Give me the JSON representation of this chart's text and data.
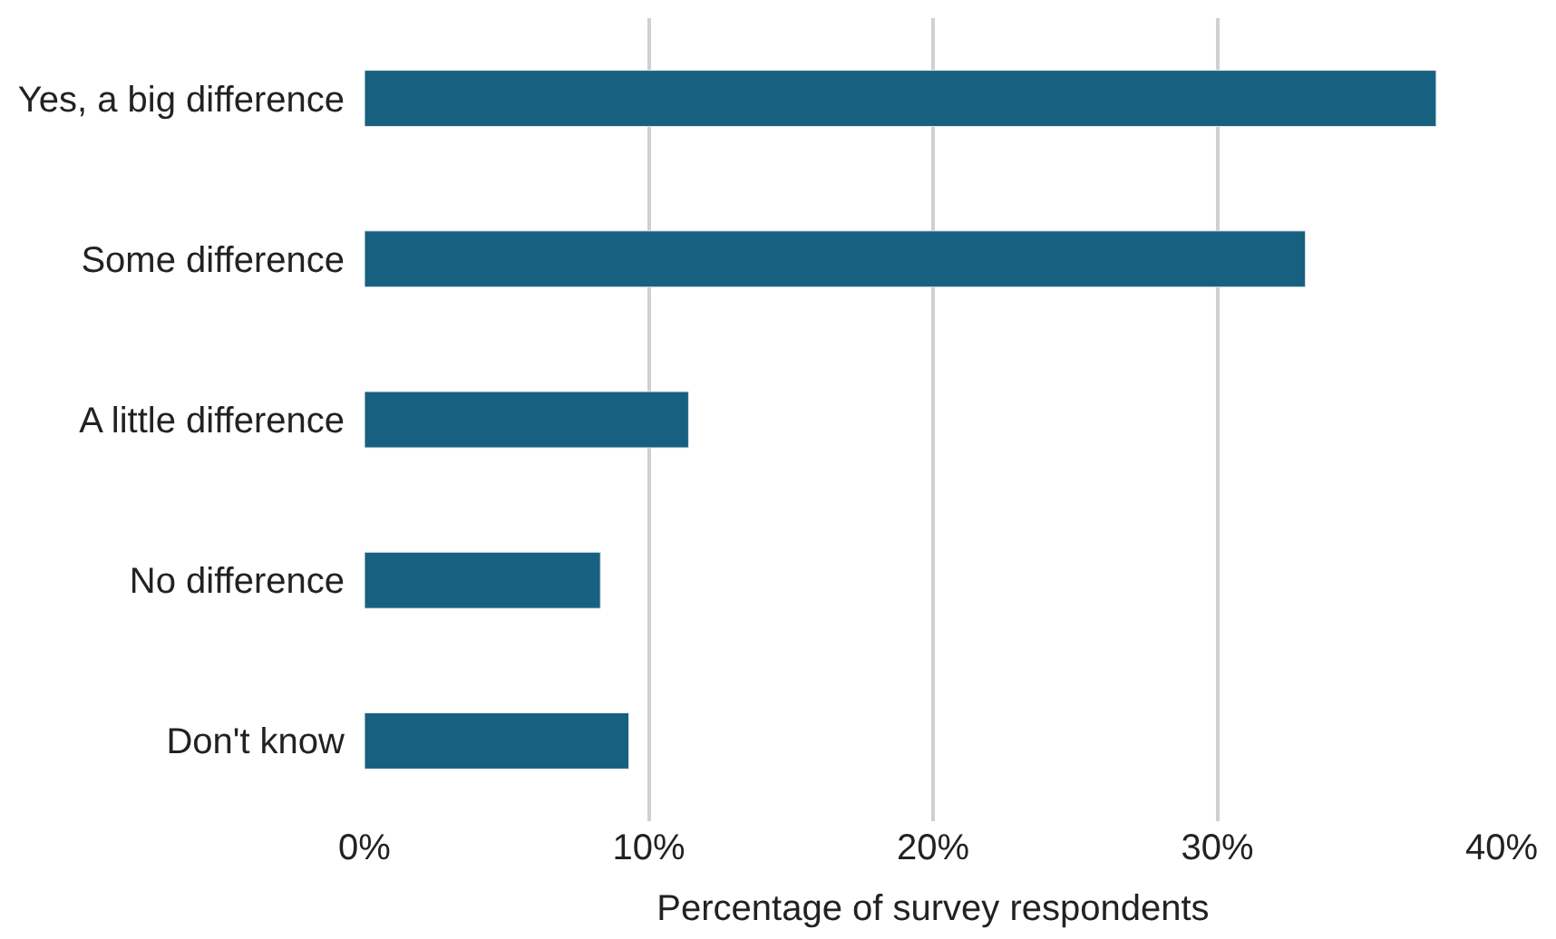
{
  "chart_data": {
    "type": "bar",
    "orientation": "horizontal",
    "xlabel": "Percentage of survey respondents",
    "categories": [
      "Yes, a big difference",
      "Some difference",
      "A little difference",
      "No difference",
      "Don't know"
    ],
    "values": [
      37.7,
      33.1,
      11.4,
      8.3,
      9.3
    ],
    "color": "#17607f",
    "xlim": [
      0,
      40
    ],
    "xticks": [
      {
        "value": 0,
        "label": "0%"
      },
      {
        "value": 10,
        "label": "10%"
      },
      {
        "value": 20,
        "label": "20%"
      },
      {
        "value": 30,
        "label": "30%"
      },
      {
        "value": 40,
        "label": "40%"
      }
    ],
    "grid": "x"
  }
}
